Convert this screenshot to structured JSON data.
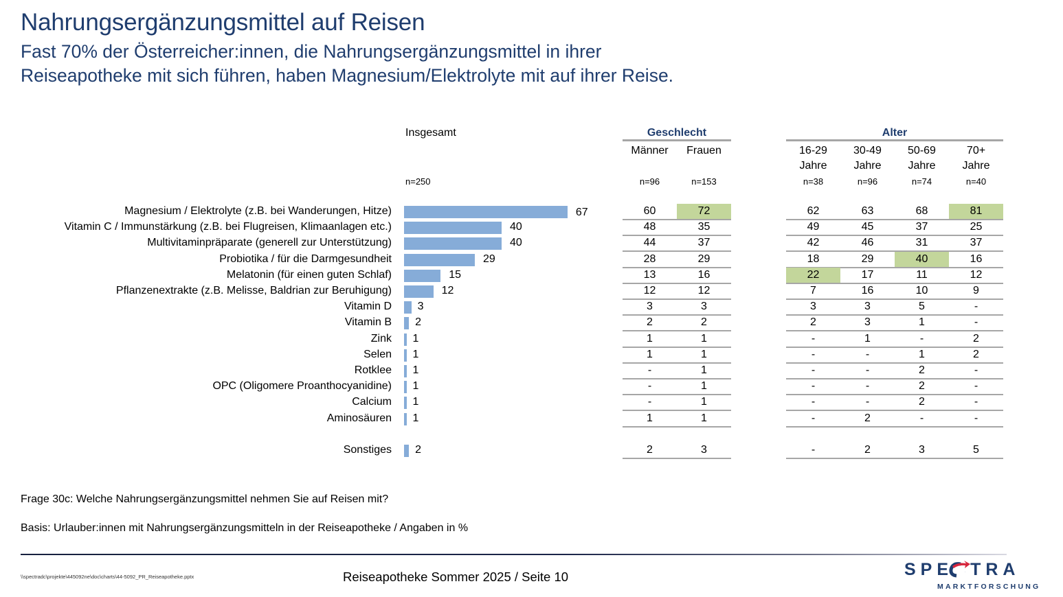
{
  "slide": {
    "title": "Nahrungsergänzungsmittel auf Reisen",
    "subtitle_line1": "Fast 70% der Österreicher:innen, die Nahrungsergänzungsmittel in ihrer",
    "subtitle_line2": "Reiseapotheke mit sich führen, haben Magnesium/Elektrolyte mit auf ihrer Reise."
  },
  "table": {
    "overall_header": "Insgesamt",
    "overall_n": "n=250",
    "groups": [
      {
        "label": "Geschlecht",
        "columns": [
          {
            "line1": "Männer",
            "line2": "",
            "n": "n=96"
          },
          {
            "line1": "Frauen",
            "line2": "",
            "n": "n=153"
          }
        ]
      },
      {
        "label": "Alter",
        "columns": [
          {
            "line1": "16-29",
            "line2": "Jahre",
            "n": "n=38"
          },
          {
            "line1": "30-49",
            "line2": "Jahre",
            "n": "n=96"
          },
          {
            "line1": "50-69",
            "line2": "Jahre",
            "n": "n=74"
          },
          {
            "line1": "70+",
            "line2": "Jahre",
            "n": "n=40"
          }
        ]
      }
    ],
    "highlight_color": "#c3d69b",
    "bar_color": "#86acd8",
    "rows": [
      {
        "label": "Magnesium / Elektrolyte (z.B. bei Wanderungen, Hitze)",
        "total": "67",
        "gender": [
          "60",
          "72"
        ],
        "age": [
          "62",
          "63",
          "68",
          "81"
        ],
        "highlight": [
          "gender.1",
          "age.3"
        ]
      },
      {
        "label": "Vitamin C / Immunstärkung (z.B. bei Flugreisen, Klimaanlagen etc.)",
        "total": "40",
        "gender": [
          "48",
          "35"
        ],
        "age": [
          "49",
          "45",
          "37",
          "25"
        ],
        "highlight": []
      },
      {
        "label": "Multivitaminpräparate (generell zur Unterstützung)",
        "total": "40",
        "gender": [
          "44",
          "37"
        ],
        "age": [
          "42",
          "46",
          "31",
          "37"
        ],
        "highlight": []
      },
      {
        "label": "Probiotika / für die Darmgesundheit",
        "total": "29",
        "gender": [
          "28",
          "29"
        ],
        "age": [
          "18",
          "29",
          "40",
          "16"
        ],
        "highlight": [
          "age.2"
        ]
      },
      {
        "label": "Melatonin (für einen guten Schlaf)",
        "total": "15",
        "gender": [
          "13",
          "16"
        ],
        "age": [
          "22",
          "17",
          "11",
          "12"
        ],
        "highlight": [
          "age.0"
        ]
      },
      {
        "label": "Pflanzenextrakte (z.B. Melisse, Baldrian zur Beruhigung)",
        "total": "12",
        "gender": [
          "12",
          "12"
        ],
        "age": [
          "7",
          "16",
          "10",
          "9"
        ],
        "highlight": []
      },
      {
        "label": "Vitamin D",
        "total": "3",
        "gender": [
          "3",
          "3"
        ],
        "age": [
          "3",
          "3",
          "5",
          "-"
        ],
        "highlight": []
      },
      {
        "label": "Vitamin B",
        "total": "2",
        "gender": [
          "2",
          "2"
        ],
        "age": [
          "2",
          "3",
          "1",
          "-"
        ],
        "highlight": []
      },
      {
        "label": "Zink",
        "total": "1",
        "gender": [
          "1",
          "1"
        ],
        "age": [
          "-",
          "1",
          "-",
          "2"
        ],
        "highlight": []
      },
      {
        "label": "Selen",
        "total": "1",
        "gender": [
          "1",
          "1"
        ],
        "age": [
          "-",
          "-",
          "1",
          "2"
        ],
        "highlight": []
      },
      {
        "label": "Rotklee",
        "total": "1",
        "gender": [
          "-",
          "1"
        ],
        "age": [
          "-",
          "-",
          "2",
          "-"
        ],
        "highlight": []
      },
      {
        "label": "OPC (Oligomere Proanthocyanidine)",
        "total": "1",
        "gender": [
          "-",
          "1"
        ],
        "age": [
          "-",
          "-",
          "2",
          "-"
        ],
        "highlight": []
      },
      {
        "label": "Calcium",
        "total": "1",
        "gender": [
          "-",
          "1"
        ],
        "age": [
          "-",
          "-",
          "2",
          "-"
        ],
        "highlight": []
      },
      {
        "label": "Aminosäuren",
        "total": "1",
        "gender": [
          "1",
          "1"
        ],
        "age": [
          "-",
          "2",
          "-",
          "-"
        ],
        "highlight": []
      },
      {
        "label": "Sonstiges",
        "total": "2",
        "gender": [
          "2",
          "3"
        ],
        "age": [
          "-",
          "2",
          "3",
          "5"
        ],
        "highlight": [],
        "separated": true
      }
    ]
  },
  "chart_data": {
    "type": "bar",
    "orientation": "horizontal",
    "title": "Insgesamt",
    "xlabel": "",
    "ylabel": "",
    "unit": "%",
    "n": "n=250",
    "categories": [
      "Magnesium / Elektrolyte (z.B. bei Wanderungen, Hitze)",
      "Vitamin C / Immunstärkung (z.B. bei Flugreisen, Klimaanlagen etc.)",
      "Multivitaminpräparate (generell zur Unterstützung)",
      "Probiotika / für die Darmgesundheit",
      "Melatonin (für einen guten Schlaf)",
      "Pflanzenextrakte (z.B. Melisse, Baldrian zur Beruhigung)",
      "Vitamin D",
      "Vitamin B",
      "Zink",
      "Selen",
      "Rotklee",
      "OPC (Oligomere Proanthocyanidine)",
      "Calcium",
      "Aminosäuren",
      "Sonstiges"
    ],
    "values": [
      67,
      40,
      40,
      29,
      15,
      12,
      3,
      2,
      1,
      1,
      1,
      1,
      1,
      1,
      2
    ],
    "xlim": [
      0,
      100
    ],
    "grid": false,
    "legend": "none",
    "data_labels": true
  },
  "notes": {
    "question": "Frage 30c: Welche Nahrungsergänzungsmittel nehmen Sie auf Reisen mit?",
    "basis": "Basis: Urlauber:innen mit Nahrungsergänzungsmitteln in der Reiseapotheke / Angaben in %"
  },
  "footer": {
    "file_path": "\\\\spectradc\\projekte\\445092ne\\doc\\charts\\44-5092_PR_Reiseapotheke.pptx",
    "center": "Reiseapotheke Sommer 2025  /  Seite 10",
    "logo_main": "SPECTRA",
    "logo_sub": "MARKTFORSCHUNG"
  }
}
